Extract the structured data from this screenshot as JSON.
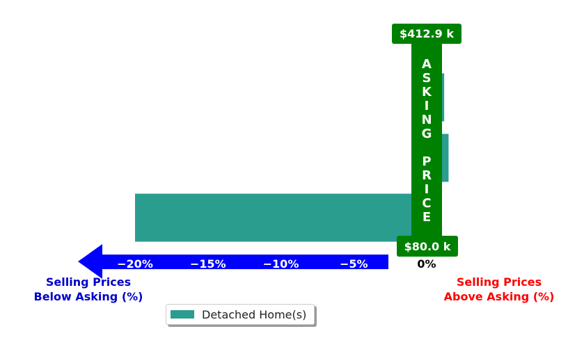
{
  "chart_data": {
    "type": "bar",
    "orientation": "horizontal",
    "series": [
      {
        "name": "Detached Home(s)",
        "color": "#2a9d8f",
        "values": [
          -20.0,
          1.5,
          1.2
        ]
      }
    ],
    "xlim": [
      -20.5,
      2.5
    ],
    "x_ticks": [
      "−20%",
      "−15%",
      "−10%",
      "−5%",
      "0%"
    ],
    "x_tick_values": [
      -20,
      -15,
      -10,
      -5,
      0
    ],
    "grid": false,
    "legend_position": "bottom"
  },
  "annotations": {
    "top_price": "$412.9 k",
    "bottom_price": "$80.0 k",
    "asking_letters": [
      "A",
      "S",
      "K",
      "I",
      "N",
      "G",
      "",
      "P",
      "R",
      "I",
      "C",
      "E"
    ],
    "below_label_line1": "Selling Prices",
    "below_label_line2": "Below Asking (%)",
    "above_label_line1": "Selling Prices",
    "above_label_line2": "Above Asking (%)"
  },
  "colors": {
    "bar": "#2a9d8f",
    "arrow": "#0000ff",
    "asking_band": "#008000",
    "below_label": "#0000cd",
    "above_label": "#ff0000"
  }
}
